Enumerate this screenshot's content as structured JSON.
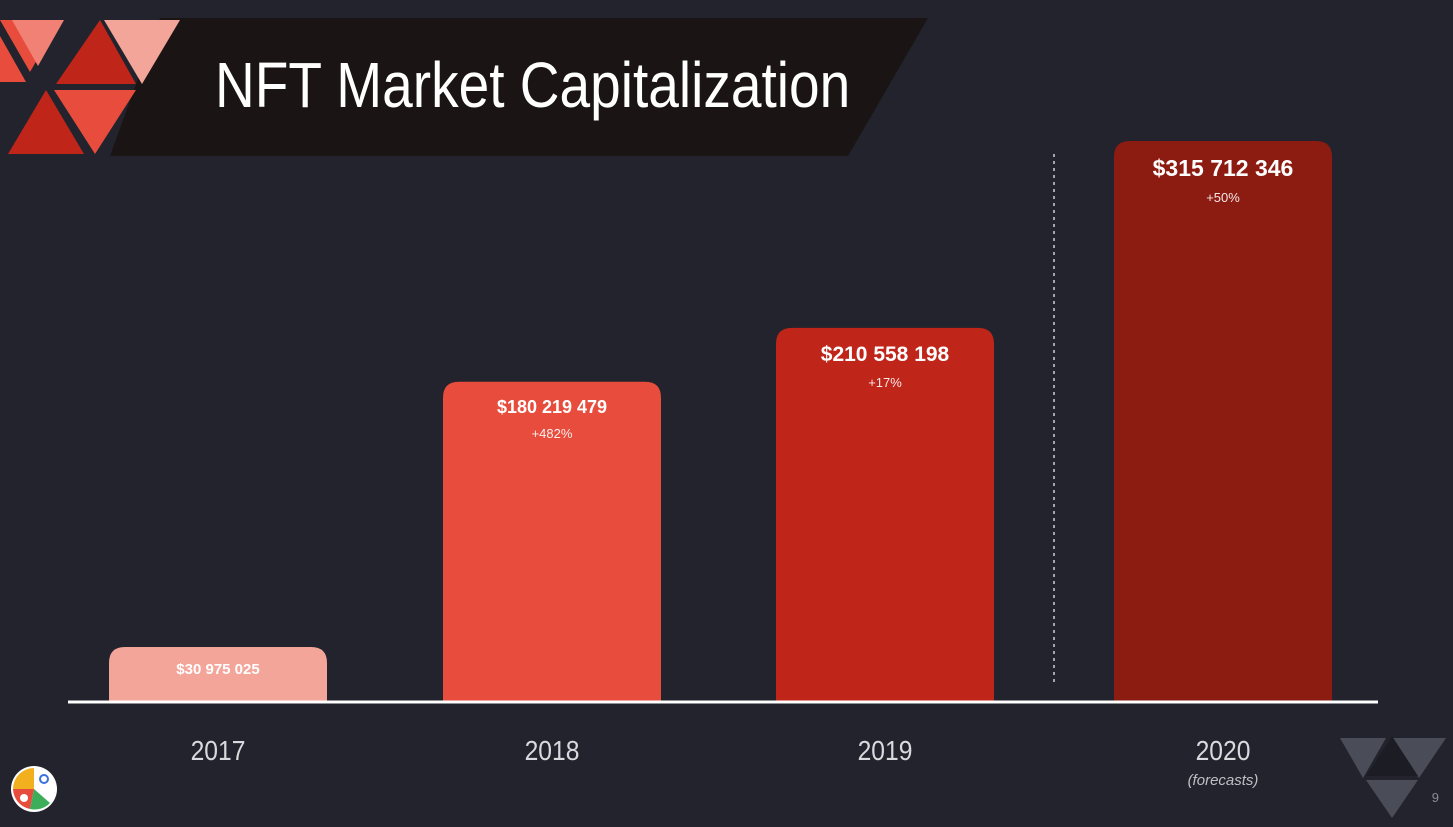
{
  "slide": {
    "title": "NFT Market Capitalization",
    "page_number": "9",
    "colors": {
      "background": "#22232c",
      "title_band": "#1a1414",
      "accent_light": "#f3a59a",
      "accent_mid": "#e84c3d",
      "accent_dark": "#c0251a",
      "accent_darkest": "#8c1c12"
    }
  },
  "chart_data": {
    "type": "bar",
    "title": "NFT Market Capitalization",
    "categories": [
      "2017",
      "2018",
      "2019",
      "2020"
    ],
    "category_notes": [
      "",
      "",
      "",
      "(forecasts)"
    ],
    "values": [
      30975025,
      180219479,
      210558198,
      315712346
    ],
    "value_labels": [
      "$30 975 025",
      "$180 219 479",
      "$210 558 198",
      "$315 712 346"
    ],
    "change_labels": [
      "",
      "+482%",
      "+17%",
      "+50%"
    ],
    "bar_colors": [
      "#f3a59a",
      "#e84c3d",
      "#c0251a",
      "#8c1c12"
    ],
    "forecast_divider_before": "2020",
    "ylim": [
      0,
      315712346
    ],
    "grid": false,
    "xlabel": "",
    "ylabel": ""
  }
}
